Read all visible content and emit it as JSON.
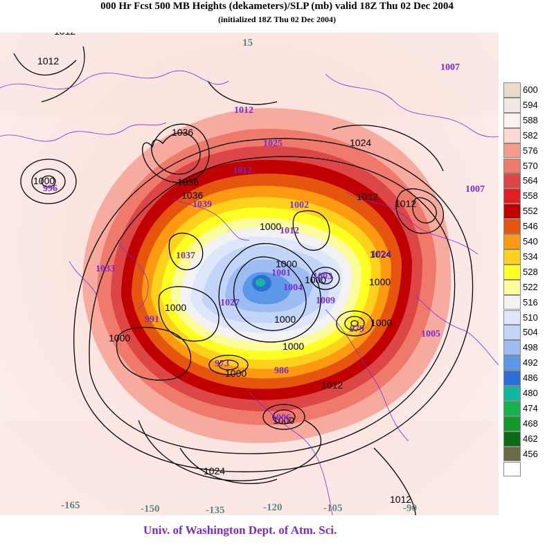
{
  "title": "000 Hr Fcst 500 MB Heights (dekameters)/SLP (mb) valid 18Z Thu 02 Dec 2004",
  "subtitle": "(initialized 18Z Thu 02 Dec 2004)",
  "credit": "Univ. of Washington Dept. of Atm. Sci.",
  "legend": [
    {
      "label": "600",
      "color": "#e8dcc8"
    },
    {
      "label": "594",
      "color": "#f1e9e4"
    },
    {
      "label": "588",
      "color": "#fbf1ef"
    },
    {
      "label": "582",
      "color": "#fbd8d2"
    },
    {
      "label": "576",
      "color": "#f69c8e"
    },
    {
      "label": "570",
      "color": "#ef7a6c"
    },
    {
      "label": "564",
      "color": "#dd4646"
    },
    {
      "label": "558",
      "color": "#e02020"
    },
    {
      "label": "552",
      "color": "#c00000"
    },
    {
      "label": "546",
      "color": "#e6550d"
    },
    {
      "label": "540",
      "color": "#fd9a12"
    },
    {
      "label": "534",
      "color": "#fed11c"
    },
    {
      "label": "528",
      "color": "#ffff22"
    },
    {
      "label": "522",
      "color": "#fbfb9a"
    },
    {
      "label": "516",
      "color": "#f2f2f2"
    },
    {
      "label": "510",
      "color": "#dde6fb"
    },
    {
      "label": "504",
      "color": "#c2d5f8"
    },
    {
      "label": "498",
      "color": "#9cbcf2"
    },
    {
      "label": "492",
      "color": "#5c98e8"
    },
    {
      "label": "486",
      "color": "#2b6fd6"
    },
    {
      "label": "480",
      "color": "#13b7a0"
    },
    {
      "label": "474",
      "color": "#14b24a"
    },
    {
      "label": "468",
      "color": "#119a2a"
    },
    {
      "label": "462",
      "color": "#0a6b12"
    },
    {
      "label": "456",
      "color": "#6e6a48"
    },
    {
      "label": "",
      "color": "#ffffff"
    }
  ],
  "longitude_labels": [
    "-165",
    "-150",
    "-135",
    "-120",
    "-105",
    "-90",
    "15"
  ],
  "slp_labels_black": [
    "1012",
    "1012",
    "1000",
    "1036",
    "1036",
    "1036",
    "1024",
    "1012",
    "1012",
    "1024",
    "1000",
    "1000",
    "1000",
    "1000",
    "1000",
    "1000",
    "1000",
    "1000",
    "1000",
    "1000",
    "1012",
    "1024",
    "1012",
    "1000"
  ],
  "slp_labels_purple": [
    "1007",
    "1007",
    "996",
    "1033",
    "1039",
    "1037",
    "1012",
    "1012",
    "1002",
    "1012",
    "1001",
    "1024",
    "1027",
    "1004",
    "1009",
    "1003",
    "991",
    "1005",
    "973",
    "986",
    "1006",
    "1025",
    "979"
  ]
}
